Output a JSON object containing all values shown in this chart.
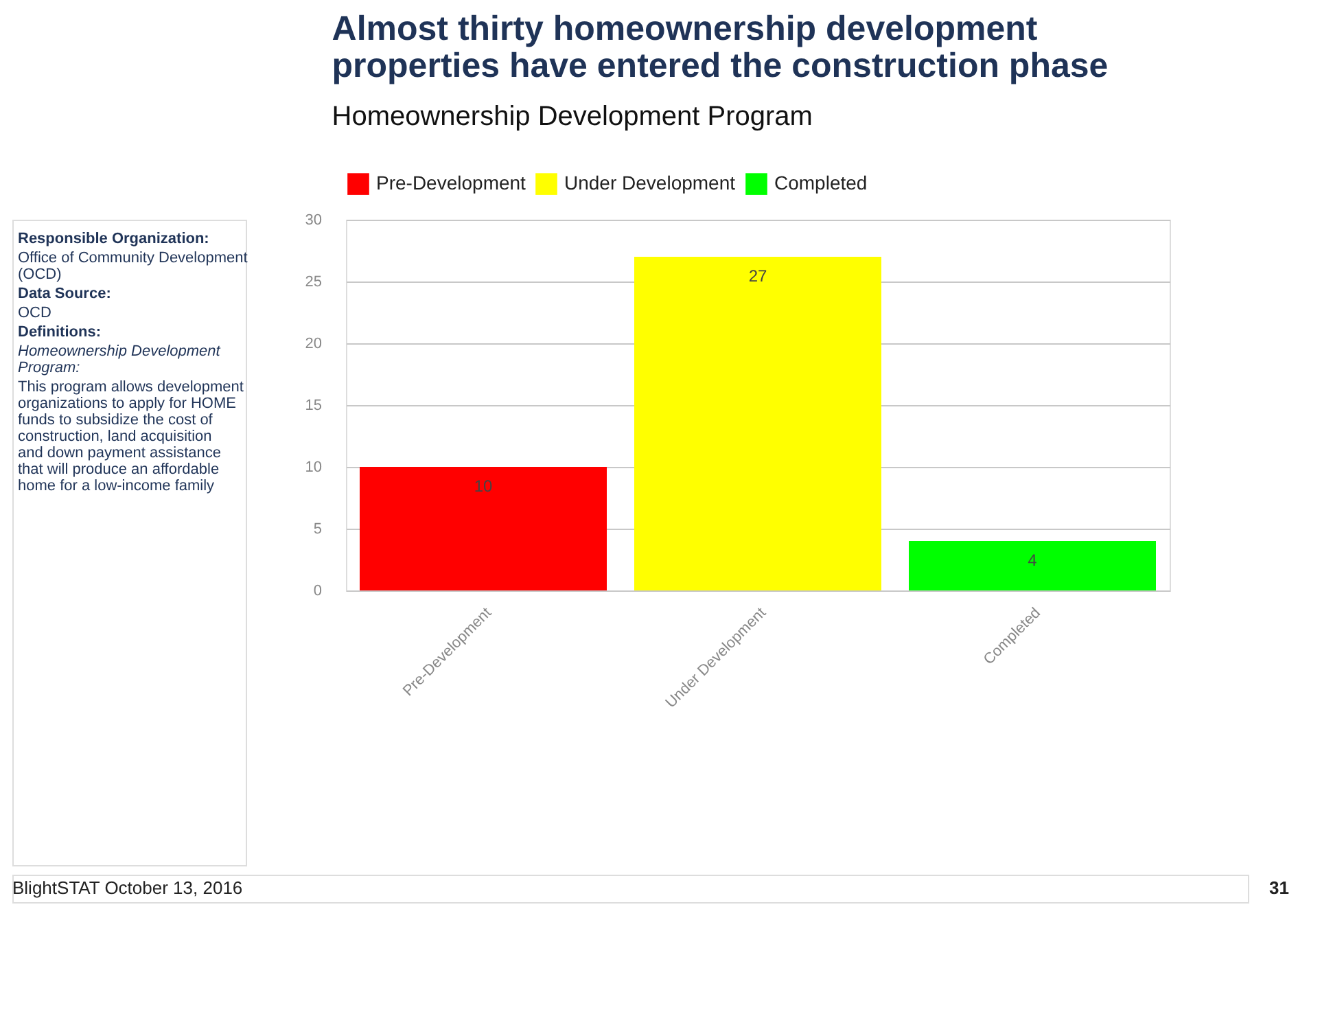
{
  "chart_data": {
    "type": "bar",
    "title": "Almost thirty homeownership development properties have entered the construction phase",
    "subtitle": "Homeownership Development Program",
    "categories": [
      "Pre-Development",
      "Under Development",
      "Completed"
    ],
    "stacked": true,
    "series": [
      {
        "name": "Pre-Development",
        "color": "#ff0000",
        "values": [
          10,
          null,
          null
        ]
      },
      {
        "name": "Under Development",
        "color": "#ffff00",
        "values": [
          null,
          27,
          null
        ]
      },
      {
        "name": "Completed",
        "color": "#00ff00",
        "values": [
          null,
          null,
          4
        ]
      }
    ],
    "ylim": [
      0,
      30
    ],
    "yticks": [
      0,
      5,
      10,
      15,
      20,
      25,
      30
    ],
    "grid": "y",
    "legend": "top",
    "data_labels": true,
    "annotations": [
      "Responsible Organization:",
      "Office of Community Development (OCD)",
      "Data Source:",
      "OCD",
      "Definitions:",
      "Homeownership Development Program:",
      "This program allows development organizations to apply for HOME funds to subsidize the cost of construction, land acquisition and down payment assistance that will produce an affordable home for a low-income family",
      "BlightSTAT October 13, 2016",
      "31"
    ]
  }
}
